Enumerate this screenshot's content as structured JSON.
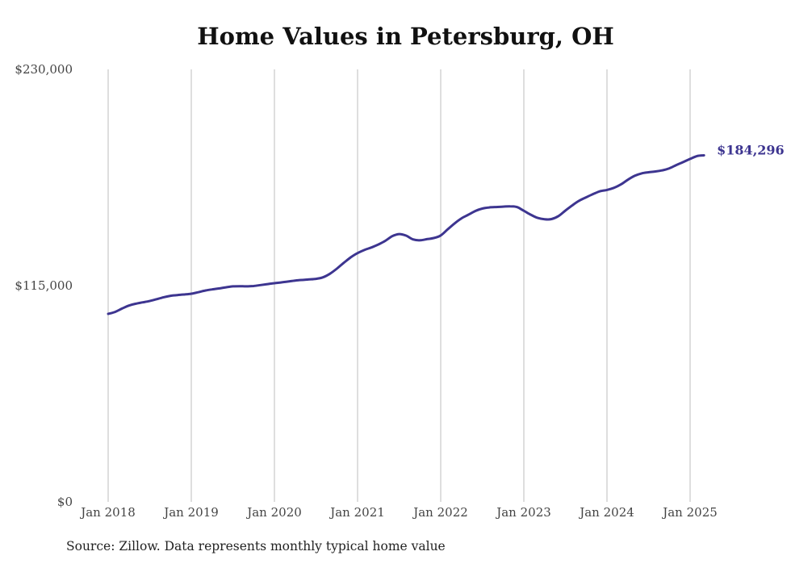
{
  "chart_data": {
    "type": "line",
    "title": "Home Values in Petersburg, OH",
    "source": "Source: Zillow. Data represents monthly typical home value",
    "xlabel": "",
    "ylabel": "",
    "ylim": [
      0,
      230000
    ],
    "y_ticks": [
      {
        "value": 0,
        "label": "$0"
      },
      {
        "value": 115000,
        "label": "$115,000"
      },
      {
        "value": 230000,
        "label": "$230,000"
      }
    ],
    "x_ticks": [
      {
        "date": "2018-01",
        "label": "Jan 2018"
      },
      {
        "date": "2019-01",
        "label": "Jan 2019"
      },
      {
        "date": "2020-01",
        "label": "Jan 2020"
      },
      {
        "date": "2021-01",
        "label": "Jan 2021"
      },
      {
        "date": "2022-01",
        "label": "Jan 2022"
      },
      {
        "date": "2023-01",
        "label": "Jan 2023"
      },
      {
        "date": "2024-01",
        "label": "Jan 2024"
      },
      {
        "date": "2025-01",
        "label": "Jan 2025"
      }
    ],
    "x_range": [
      "2018-01",
      "2025-03"
    ],
    "grid": "vertical",
    "line_color": "#3d3590",
    "end_label": "$184,296",
    "series": [
      {
        "x": [
          "2018-01",
          "2018-02",
          "2018-03",
          "2018-04",
          "2018-05",
          "2018-06",
          "2018-07",
          "2018-08",
          "2018-09",
          "2018-10",
          "2018-11",
          "2018-12",
          "2019-01",
          "2019-02",
          "2019-03",
          "2019-04",
          "2019-05",
          "2019-06",
          "2019-07",
          "2019-08",
          "2019-09",
          "2019-10",
          "2019-11",
          "2019-12",
          "2020-01",
          "2020-02",
          "2020-03",
          "2020-04",
          "2020-05",
          "2020-06",
          "2020-07",
          "2020-08",
          "2020-09",
          "2020-10",
          "2020-11",
          "2020-12",
          "2021-01",
          "2021-02",
          "2021-03",
          "2021-04",
          "2021-05",
          "2021-06",
          "2021-07",
          "2021-08",
          "2021-09",
          "2021-10",
          "2021-11",
          "2021-12",
          "2022-01",
          "2022-02",
          "2022-03",
          "2022-04",
          "2022-05",
          "2022-06",
          "2022-07",
          "2022-08",
          "2022-09",
          "2022-10",
          "2022-11",
          "2022-12",
          "2023-01",
          "2023-02",
          "2023-03",
          "2023-04",
          "2023-05",
          "2023-06",
          "2023-07",
          "2023-08",
          "2023-09",
          "2023-10",
          "2023-11",
          "2023-12",
          "2024-01",
          "2024-02",
          "2024-03",
          "2024-04",
          "2024-05",
          "2024-06",
          "2024-07",
          "2024-08",
          "2024-09",
          "2024-10",
          "2024-11",
          "2024-12",
          "2025-01",
          "2025-02",
          "2025-03"
        ],
        "values": [
          100000,
          101000,
          102800,
          104400,
          105400,
          106100,
          106800,
          107800,
          108800,
          109600,
          110000,
          110300,
          110700,
          111500,
          112400,
          113000,
          113500,
          114100,
          114600,
          114700,
          114600,
          114800,
          115300,
          115800,
          116300,
          116700,
          117200,
          117700,
          118000,
          118300,
          118600,
          119400,
          121300,
          124000,
          127100,
          130000,
          132300,
          134000,
          135300,
          136900,
          138800,
          141300,
          142400,
          141600,
          139600,
          139100,
          139700,
          140300,
          141700,
          144900,
          148100,
          150800,
          152700,
          154700,
          156000,
          156600,
          156800,
          157000,
          157200,
          156800,
          154800,
          152700,
          151000,
          150300,
          150400,
          152000,
          154900,
          157700,
          160200,
          162000,
          163700,
          165200,
          165900,
          167000,
          168800,
          171300,
          173400,
          174700,
          175300,
          175700,
          176300,
          177400,
          179100,
          180700,
          182400,
          183900,
          184296
        ]
      }
    ]
  }
}
